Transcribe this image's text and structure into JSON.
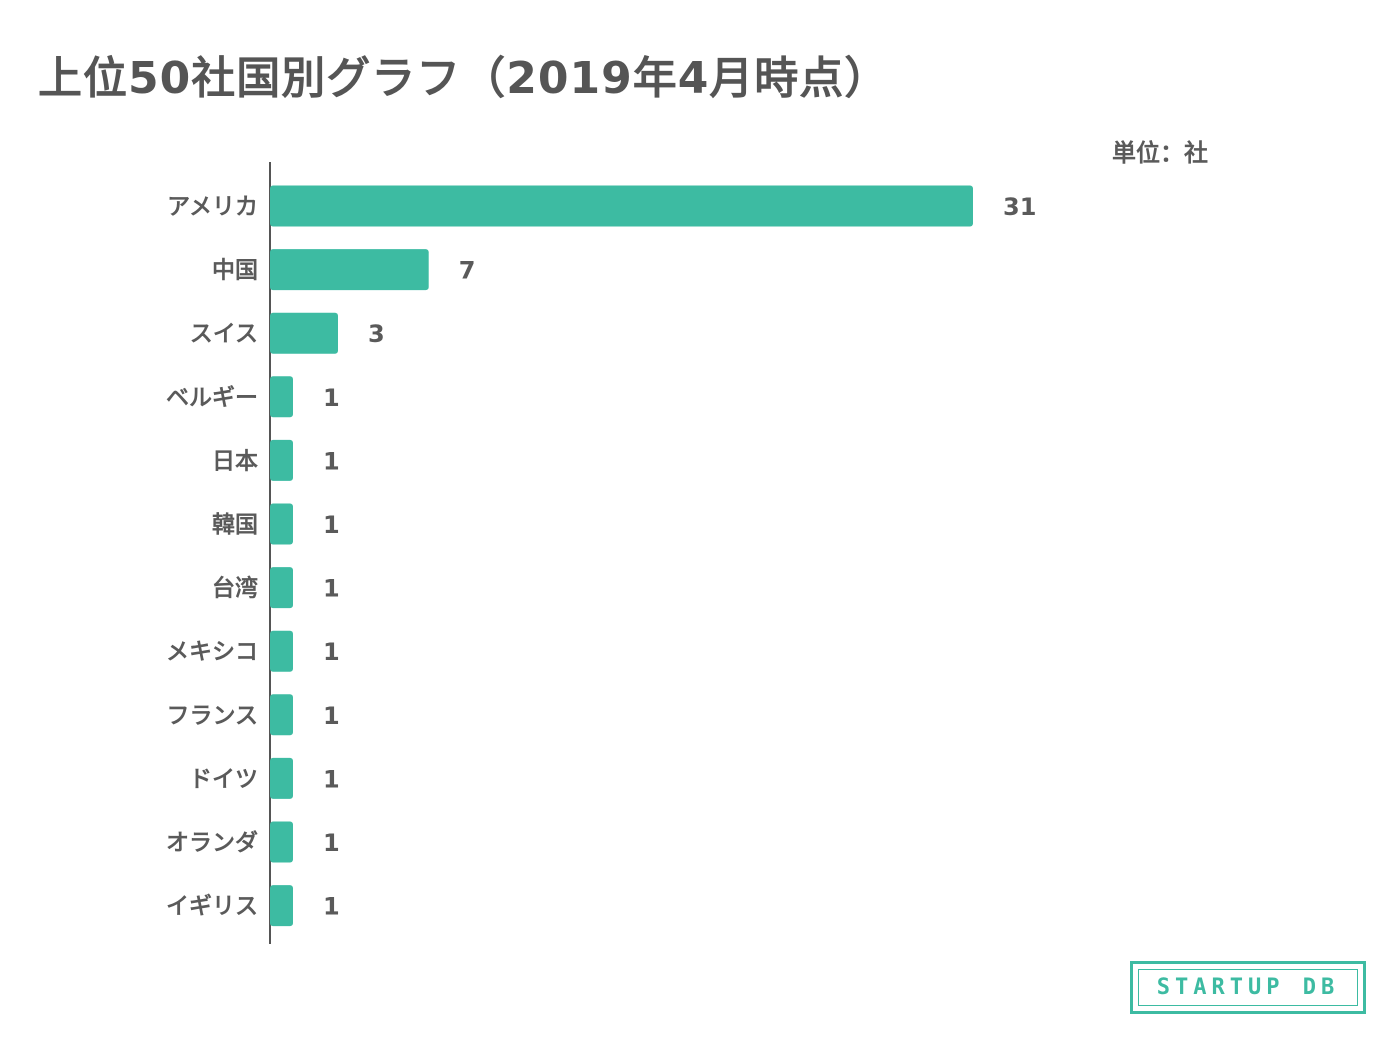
{
  "chart_data": {
    "type": "bar",
    "orientation": "horizontal",
    "title": "上位50社国別グラフ（2019年4月時点）",
    "unit_label": "単位：社",
    "categories": [
      "アメリカ",
      "中国",
      "スイス",
      "ベルギー",
      "日本",
      "韓国",
      "台湾",
      "メキシコ",
      "フランス",
      "ドイツ",
      "オランダ",
      "イギリス"
    ],
    "values": [
      31,
      7,
      3,
      1,
      1,
      1,
      1,
      1,
      1,
      1,
      1,
      1
    ],
    "data_labels": [
      "31",
      "7",
      "3",
      "1",
      "1",
      "1",
      "1",
      "1",
      "1",
      "1",
      "1",
      "1"
    ],
    "xlim": [
      0,
      31
    ],
    "grid": false,
    "legend": "none",
    "bar_color": "#3dbba2",
    "axis_color": "#555555"
  },
  "logo": {
    "text": "STARTUP DB",
    "color": "#3dbba2"
  }
}
